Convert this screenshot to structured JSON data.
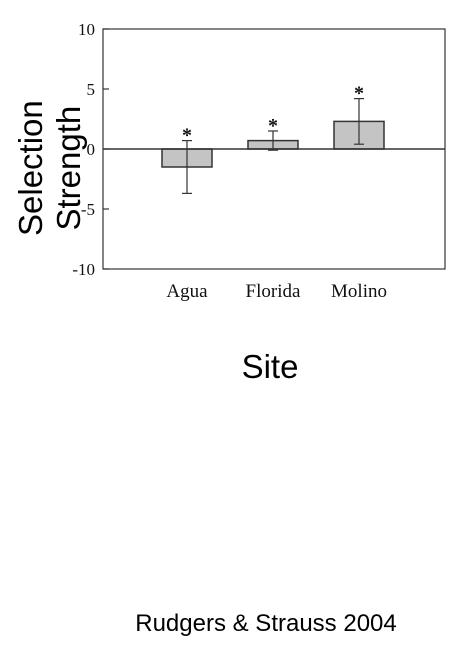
{
  "chart_data": {
    "type": "bar",
    "categories": [
      "Agua",
      "Florida",
      "Molino"
    ],
    "values": [
      -1.5,
      0.7,
      2.3
    ],
    "error": [
      2.2,
      0.8,
      1.9
    ],
    "significance": [
      "*",
      "*",
      "*"
    ],
    "ylim": [
      -10,
      10
    ],
    "yticks": [
      10,
      5,
      0,
      -5,
      -10
    ],
    "xlabel": "Site",
    "ylabel_lines": [
      "Selection",
      "Strength"
    ],
    "bar_color": "#c4c4c4",
    "grid": false
  },
  "credit": "Rudgers & Strauss 2004"
}
